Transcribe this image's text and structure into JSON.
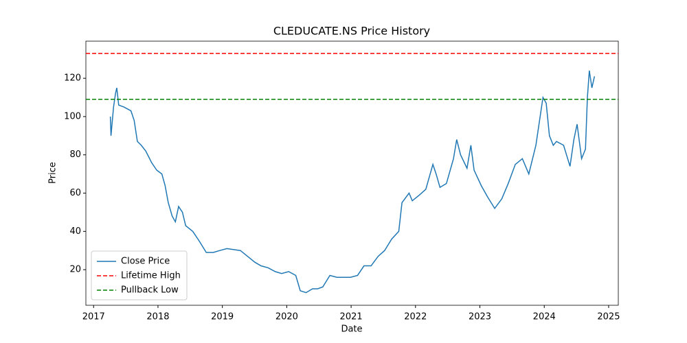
{
  "chart_data": {
    "type": "line",
    "title": "CLEDUCATE.NS Price History",
    "xlabel": "Date",
    "ylabel": "Price",
    "x": [
      2017.26,
      2017.27,
      2017.31,
      2017.34,
      2017.36,
      2017.39,
      2017.47,
      2017.58,
      2017.63,
      2017.68,
      2017.74,
      2017.81,
      2017.9,
      2017.98,
      2018.06,
      2018.11,
      2018.16,
      2018.22,
      2018.27,
      2018.32,
      2018.38,
      2018.43,
      2018.54,
      2018.64,
      2018.75,
      2018.86,
      2018.96,
      2019.07,
      2019.28,
      2019.39,
      2019.5,
      2019.6,
      2019.71,
      2019.82,
      2019.92,
      2020.03,
      2020.14,
      2020.21,
      2020.3,
      2020.4,
      2020.48,
      2020.56,
      2020.67,
      2020.78,
      2020.88,
      2020.99,
      2021.1,
      2021.2,
      2021.31,
      2021.42,
      2021.52,
      2021.63,
      2021.74,
      2021.79,
      2021.9,
      2021.95,
      2022.06,
      2022.16,
      2022.27,
      2022.32,
      2022.38,
      2022.48,
      2022.59,
      2022.64,
      2022.7,
      2022.8,
      2022.86,
      2022.91,
      2023.02,
      2023.12,
      2023.23,
      2023.34,
      2023.44,
      2023.55,
      2023.66,
      2023.76,
      2023.87,
      2023.98,
      2024.03,
      2024.08,
      2024.14,
      2024.19,
      2024.3,
      2024.4,
      2024.46,
      2024.51,
      2024.58,
      2024.64,
      2024.67,
      2024.7,
      2024.74,
      2024.78
    ],
    "series": [
      {
        "name": "Close Price",
        "color": "#1f77b4",
        "values": [
          100,
          90,
          105,
          112,
          115,
          106,
          105,
          103,
          98,
          87,
          85,
          82,
          76,
          72,
          70,
          64,
          55,
          48,
          45,
          53,
          50,
          43,
          40,
          35,
          29,
          29,
          30,
          31,
          30,
          27,
          24,
          22,
          21,
          19,
          18,
          19,
          17,
          9,
          8,
          10,
          10,
          11,
          17,
          16,
          16,
          16,
          17,
          22,
          22,
          27,
          30,
          36,
          40,
          55,
          60,
          56,
          59,
          62,
          75,
          70,
          63,
          65,
          78,
          88,
          80,
          73,
          85,
          72,
          64,
          58,
          52,
          57,
          65,
          75,
          78,
          70,
          85,
          110,
          107,
          90,
          85,
          87,
          85,
          74,
          88,
          96,
          78,
          83,
          110,
          124,
          115,
          121
        ]
      }
    ],
    "reference_lines": [
      {
        "name": "Lifetime High",
        "value": 133,
        "color": "#ff0000"
      },
      {
        "name": "Pullback Low",
        "value": 109,
        "color": "#008000"
      }
    ],
    "xlim": [
      2016.88,
      2025.15
    ],
    "xticks": [
      2017,
      2018,
      2019,
      2020,
      2021,
      2022,
      2023,
      2024,
      2025
    ],
    "ylim": [
      1.4,
      139.4
    ],
    "yticks": [
      20,
      40,
      60,
      80,
      100,
      120
    ],
    "legend": "lower left"
  }
}
